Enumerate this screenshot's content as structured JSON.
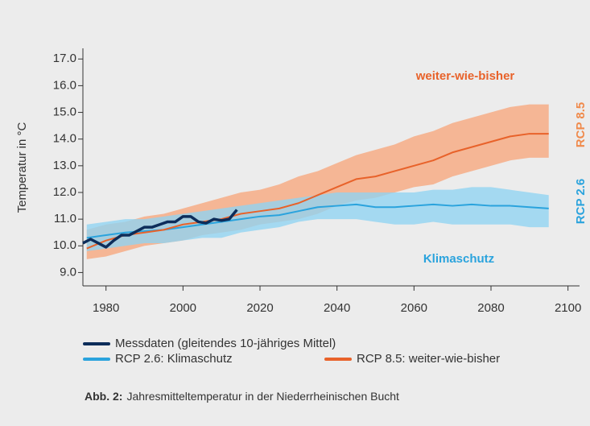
{
  "chart_data": {
    "type": "line",
    "y_label": "Temperatur  in °C",
    "annotations": [
      {
        "text": "weiter-wie-bisher",
        "color": "#e8622a"
      },
      {
        "text": "Klimaschutz",
        "color": "#2aa3dd"
      },
      {
        "text": "RCP 8.5",
        "color": "#f08a4b"
      },
      {
        "text": "RCP 2.6",
        "color": "#2aa3dd"
      }
    ],
    "caption_label": "Abb. 2:",
    "caption": "Jahresmitteltemperatur in der Niederrheinischen Bucht",
    "xlim": [
      1974,
      2103
    ],
    "xticks": [
      1980,
      2000,
      2020,
      2040,
      2060,
      2080,
      2100
    ],
    "ylim": [
      8.5,
      17.4
    ],
    "yticks": [
      {
        "value": 9,
        "label": "9.0"
      },
      {
        "value": 10,
        "label": "10.0"
      },
      {
        "value": 11,
        "label": "11.0"
      },
      {
        "value": 12,
        "label": "12.0"
      },
      {
        "value": 13,
        "label": "13.0"
      },
      {
        "value": 14,
        "label": "14.0"
      },
      {
        "value": 15,
        "label": "15.0"
      },
      {
        "value": 16,
        "label": "16.0"
      },
      {
        "value": 17,
        "label": "17.0"
      }
    ],
    "series": [
      {
        "name": "RCP 8.5: weiter-wie-bisher",
        "color": "#e8622a",
        "band_color": "#f7a77c",
        "x": [
          1975,
          1980,
          1985,
          1990,
          1995,
          2000,
          2005,
          2010,
          2015,
          2020,
          2025,
          2030,
          2035,
          2040,
          2045,
          2050,
          2055,
          2060,
          2065,
          2070,
          2075,
          2080,
          2085,
          2090,
          2095
        ],
        "values": [
          9.9,
          10.2,
          10.4,
          10.5,
          10.6,
          10.8,
          10.9,
          11.0,
          11.2,
          11.3,
          11.4,
          11.6,
          11.9,
          12.2,
          12.5,
          12.6,
          12.8,
          13.0,
          13.2,
          13.5,
          13.7,
          13.9,
          14.1,
          14.2,
          14.2
        ],
        "lower": [
          9.5,
          9.6,
          9.8,
          10.0,
          10.1,
          10.2,
          10.4,
          10.5,
          10.6,
          10.8,
          10.9,
          11.0,
          11.2,
          11.5,
          11.7,
          11.8,
          12.0,
          12.2,
          12.3,
          12.6,
          12.8,
          13.0,
          13.2,
          13.3,
          13.3
        ],
        "upper": [
          10.6,
          10.8,
          10.9,
          11.1,
          11.2,
          11.4,
          11.6,
          11.8,
          12.0,
          12.1,
          12.3,
          12.6,
          12.8,
          13.1,
          13.4,
          13.6,
          13.8,
          14.1,
          14.3,
          14.6,
          14.8,
          15.0,
          15.2,
          15.3,
          15.3
        ]
      },
      {
        "name": "RCP 2.6:  Klimaschutz",
        "color": "#2aa3dd",
        "band_color": "#8fd3f2",
        "x": [
          1975,
          1980,
          1985,
          1990,
          1995,
          2000,
          2005,
          2010,
          2015,
          2020,
          2025,
          2030,
          2035,
          2040,
          2045,
          2050,
          2055,
          2060,
          2065,
          2070,
          2075,
          2080,
          2085,
          2090,
          2095
        ],
        "values": [
          10.3,
          10.4,
          10.5,
          10.55,
          10.6,
          10.7,
          10.8,
          10.9,
          11.0,
          11.1,
          11.15,
          11.3,
          11.45,
          11.5,
          11.55,
          11.45,
          11.45,
          11.5,
          11.55,
          11.5,
          11.55,
          11.5,
          11.5,
          11.45,
          11.4
        ],
        "lower": [
          9.8,
          9.9,
          10.0,
          10.1,
          10.1,
          10.2,
          10.3,
          10.3,
          10.5,
          10.6,
          10.7,
          10.9,
          11.0,
          11.0,
          11.0,
          10.9,
          10.8,
          10.8,
          10.9,
          10.8,
          10.8,
          10.8,
          10.8,
          10.7,
          10.7
        ],
        "upper": [
          10.8,
          10.9,
          11.0,
          11.0,
          11.1,
          11.2,
          11.3,
          11.4,
          11.5,
          11.6,
          11.7,
          11.8,
          11.9,
          12.0,
          12.0,
          12.0,
          12.0,
          12.0,
          12.1,
          12.1,
          12.2,
          12.2,
          12.1,
          12.0,
          11.9
        ]
      },
      {
        "name": "Messdaten (gleitendes 10-jähriges Mittel)",
        "color": "#0d2d5a",
        "x": [
          1974,
          1976,
          1978,
          1980,
          1982,
          1984,
          1986,
          1988,
          1990,
          1992,
          1994,
          1996,
          1998,
          2000,
          2002,
          2004,
          2006,
          2008,
          2010,
          2012,
          2014
        ],
        "values": [
          10.1,
          10.25,
          10.1,
          9.95,
          10.2,
          10.4,
          10.4,
          10.55,
          10.7,
          10.7,
          10.8,
          10.9,
          10.9,
          11.1,
          11.1,
          10.9,
          10.85,
          11.0,
          10.95,
          11.0,
          11.35
        ]
      }
    ]
  }
}
